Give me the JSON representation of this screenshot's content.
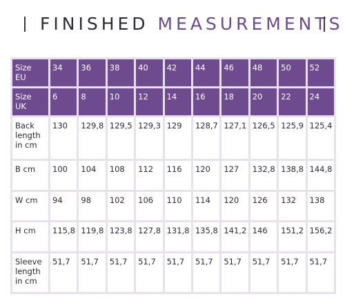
{
  "title": {
    "word1": "FINISHED",
    "word2": "MEASUREMENTS"
  },
  "table": {
    "rows": [
      {
        "label": "Size EU",
        "values": [
          "34",
          "36",
          "38",
          "40",
          "42",
          "44",
          "46",
          "48",
          "50",
          "52"
        ],
        "header": true
      },
      {
        "label": "Size UK",
        "values": [
          "6",
          "8",
          "10",
          "12",
          "14",
          "16",
          "18",
          "20",
          "22",
          "24"
        ],
        "header": true
      },
      {
        "label": "Back length in cm",
        "values": [
          "130",
          "129,8",
          "129,5",
          "129,3",
          "129",
          "128,7",
          "127,1",
          "126,5",
          "125,9",
          "125,4"
        ]
      },
      {
        "label": "B cm",
        "values": [
          "100",
          "104",
          "108",
          "112",
          "116",
          "120",
          "127",
          "132,8",
          "138,8",
          "144,8"
        ]
      },
      {
        "label": "W cm",
        "values": [
          "94",
          "98",
          "102",
          "106",
          "110",
          "114",
          "120",
          "126",
          "132",
          "138"
        ]
      },
      {
        "label": "H cm",
        "values": [
          "115,8",
          "119,8",
          "123,8",
          "127,8",
          "131,8",
          "135,8",
          "141,2",
          "146",
          "151,2",
          "156,2"
        ]
      },
      {
        "label": "Sleeve length in cm",
        "values": [
          "51,7",
          "51,7",
          "51,7",
          "51,7",
          "51,7",
          "51,7",
          "51,7",
          "51,7",
          "51,7",
          "51,7"
        ]
      }
    ]
  },
  "colors": {
    "accent": "#6d4b8e",
    "text": "#2f2a36",
    "grid": "#e6e1ec"
  }
}
